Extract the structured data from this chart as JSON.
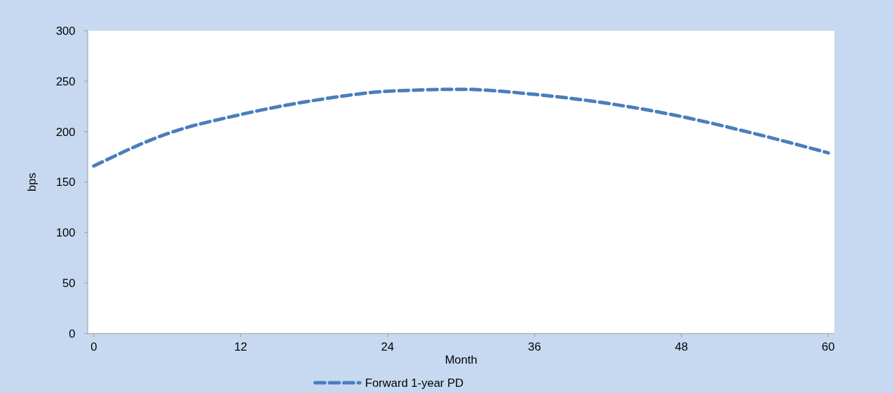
{
  "chart_data": {
    "type": "line",
    "xlabel": "Month",
    "ylabel": "bps",
    "x": [
      0,
      6,
      12,
      18,
      24,
      30,
      36,
      42,
      48,
      54,
      60
    ],
    "series": [
      {
        "name": "Forward 1-year PD",
        "color": "#4a7ebb",
        "values": [
          166,
          198,
          217,
          231,
          240,
          242,
          237,
          228,
          215,
          198,
          179
        ]
      }
    ],
    "xlim": [
      -0.5,
      60.5
    ],
    "xticks": [
      0,
      12,
      24,
      36,
      48,
      60
    ],
    "ylim": [
      0,
      300
    ],
    "yticks": [
      0,
      50,
      100,
      150,
      200,
      250,
      300
    ],
    "grid": false,
    "legend": "bottom",
    "marker": "none",
    "line_style": "dashed"
  }
}
